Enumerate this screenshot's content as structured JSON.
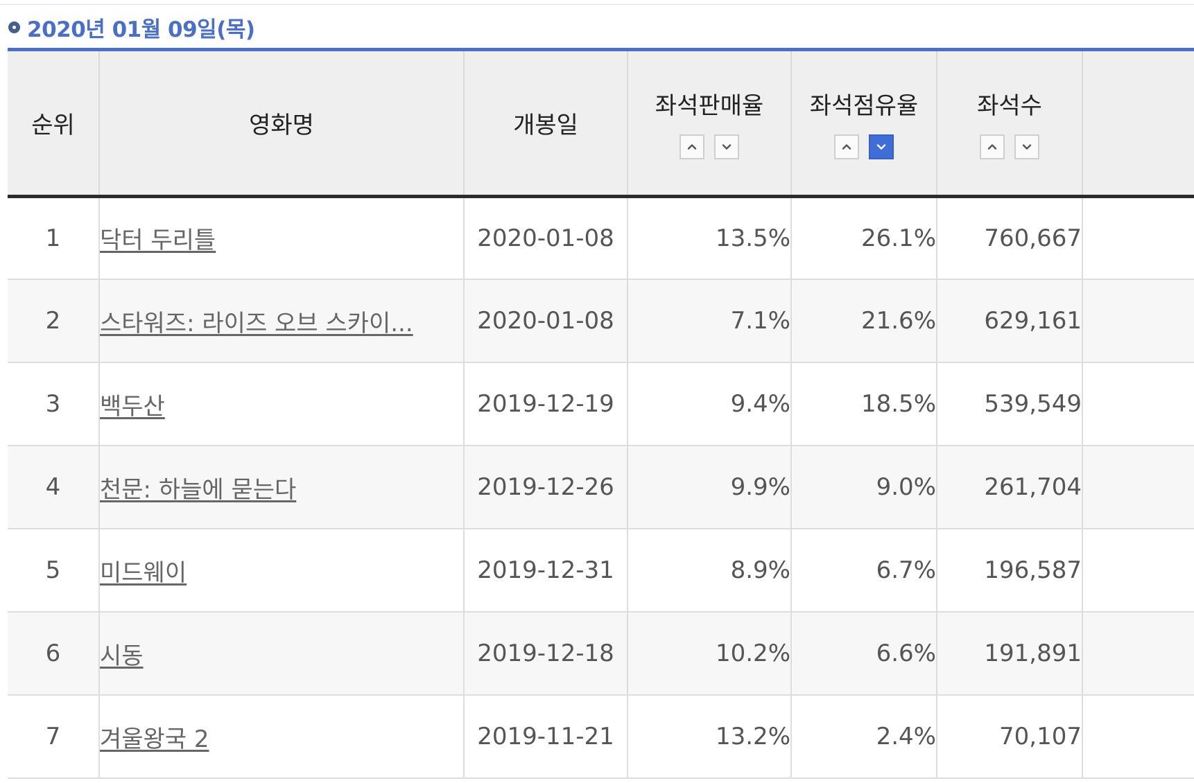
{
  "heading": {
    "date": "2020년 01월 09일(목)",
    "bullet_icon": "circle-ring-icon"
  },
  "colors": {
    "heading_text": "#4a6fc4",
    "heading_rule": "#4a6fc4",
    "active_sort": "#3f6fd6"
  },
  "table": {
    "headers": {
      "rank": "순위",
      "title": "영화명",
      "release": "개봉일",
      "sales_rate": "좌석판매율",
      "share_rate": "좌석점유율",
      "seats": "좌석수"
    },
    "sort": {
      "sales_rate": {
        "asc_icon": "chevron-up-icon",
        "desc_icon": "chevron-down-icon",
        "active": "none"
      },
      "share_rate": {
        "asc_icon": "chevron-up-icon",
        "desc_icon": "chevron-down-icon",
        "active": "desc"
      },
      "seats": {
        "asc_icon": "chevron-up-icon",
        "desc_icon": "chevron-down-icon",
        "active": "none"
      }
    },
    "rows": [
      {
        "rank": "1",
        "title": "닥터 두리틀",
        "release": "2020-01-08",
        "sales_rate": "13.5%",
        "share_rate": "26.1%",
        "seats": "760,667"
      },
      {
        "rank": "2",
        "title": "스타워즈: 라이즈 오브 스카이...",
        "release": "2020-01-08",
        "sales_rate": "7.1%",
        "share_rate": "21.6%",
        "seats": "629,161"
      },
      {
        "rank": "3",
        "title": "백두산",
        "release": "2019-12-19",
        "sales_rate": "9.4%",
        "share_rate": "18.5%",
        "seats": "539,549"
      },
      {
        "rank": "4",
        "title": "천문: 하늘에 묻는다",
        "release": "2019-12-26",
        "sales_rate": "9.9%",
        "share_rate": "9.0%",
        "seats": "261,704"
      },
      {
        "rank": "5",
        "title": "미드웨이",
        "release": "2019-12-31",
        "sales_rate": "8.9%",
        "share_rate": "6.7%",
        "seats": "196,587"
      },
      {
        "rank": "6",
        "title": "시동",
        "release": "2019-12-18",
        "sales_rate": "10.2%",
        "share_rate": "6.6%",
        "seats": "191,891"
      },
      {
        "rank": "7",
        "title": "겨울왕국 2",
        "release": "2019-11-21",
        "sales_rate": "13.2%",
        "share_rate": "2.4%",
        "seats": "70,107"
      }
    ]
  }
}
